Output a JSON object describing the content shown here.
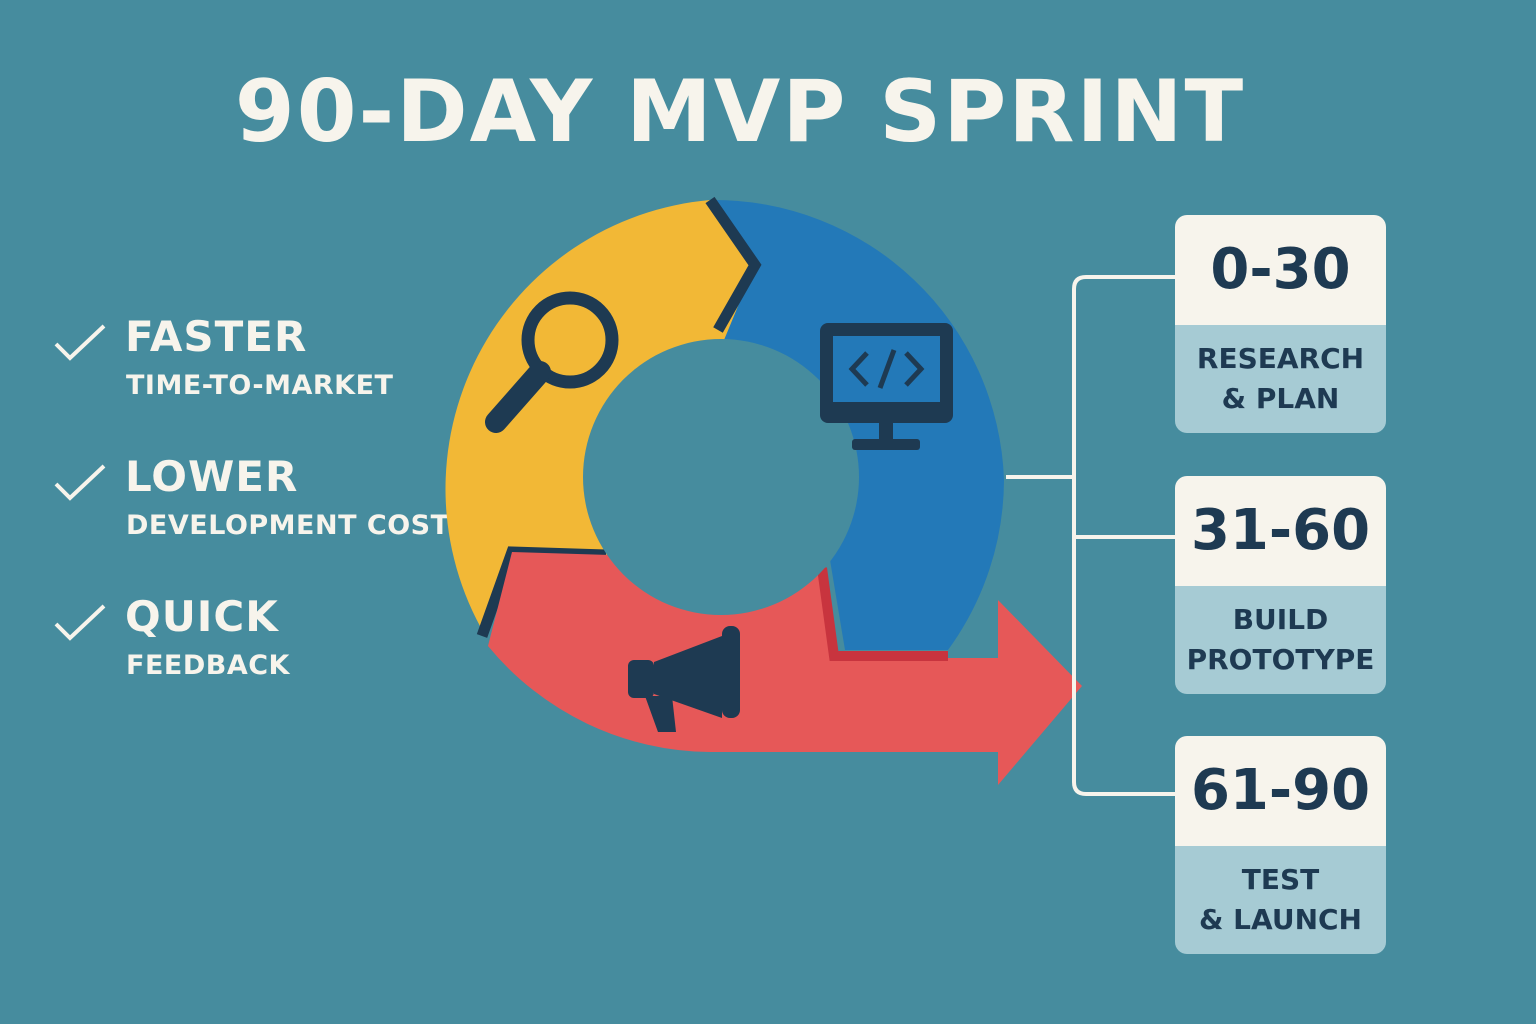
{
  "title": "90-DAY MVP SPRINT",
  "benefits": [
    {
      "main": "FASTER",
      "sub": "TIME-TO-MARKET"
    },
    {
      "main": "LOWER",
      "sub": "DEVELOPMENT COST"
    },
    {
      "main": "QUICK",
      "sub": "FEEDBACK"
    }
  ],
  "phases": [
    {
      "range": "0-30",
      "line1": "RESEARCH",
      "line2": "& PLAN",
      "icon": "magnifier-icon",
      "color": "#f2b836"
    },
    {
      "range": "31-60",
      "line1": "BUILD",
      "line2": "PROTOTYPE",
      "icon": "monitor-code-icon",
      "color": "#2379b8"
    },
    {
      "range": "61-90",
      "line1": "TEST",
      "line2": "& LAUNCH",
      "icon": "megaphone-icon",
      "color": "#e65858"
    }
  ],
  "colors": {
    "background": "#468c9e",
    "dark": "#1e3a52",
    "cream": "#f7f4ec",
    "label_bg": "#a6cbd4"
  }
}
